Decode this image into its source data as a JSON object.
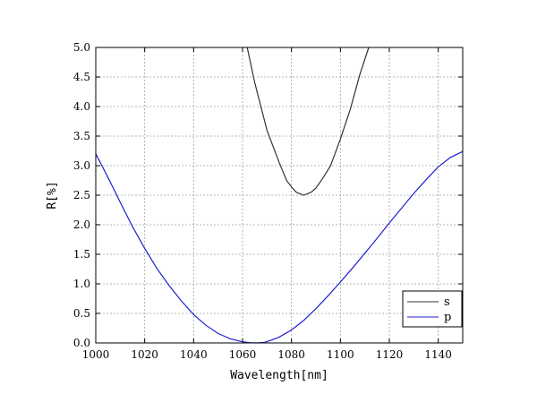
{
  "chart_data": {
    "type": "line",
    "title": "",
    "xlabel": "Wavelength[nm]",
    "ylabel": "R[%]",
    "xlim": [
      1000,
      1150
    ],
    "ylim": [
      0,
      5
    ],
    "x_ticks": [
      1000,
      1020,
      1040,
      1060,
      1080,
      1100,
      1120,
      1140
    ],
    "x_tick_labels": [
      "1000",
      "1020",
      "1040",
      "1060",
      "1080",
      "1100",
      "1120",
      "1140"
    ],
    "y_ticks": [
      0,
      0.5,
      1,
      1.5,
      2,
      2.5,
      3,
      3.5,
      4,
      4.5,
      5
    ],
    "y_tick_labels": [
      "0.0",
      "0.5",
      "1.0",
      "1.5",
      "2.0",
      "2.5",
      "3.0",
      "3.5",
      "4.0",
      "4.5",
      "5.0"
    ],
    "grid": true,
    "legend_position": "bottom-right",
    "series": [
      {
        "name": "s",
        "color": "#333333",
        "x": [
          1061.9,
          1065,
          1070,
          1075,
          1078,
          1080,
          1082,
          1085,
          1088,
          1090,
          1093,
          1096,
          1100,
          1104,
          1108,
          1111.6
        ],
        "y": [
          5.0,
          4.4,
          3.6,
          3.05,
          2.75,
          2.64,
          2.55,
          2.5,
          2.55,
          2.62,
          2.8,
          3.0,
          3.45,
          3.95,
          4.55,
          5.0
        ]
      },
      {
        "name": "p",
        "color": "#1f1fd0",
        "x": [
          1000,
          1005,
          1010,
          1015,
          1020,
          1025,
          1030,
          1035,
          1040,
          1045,
          1050,
          1055,
          1060,
          1063,
          1066,
          1069,
          1072,
          1075,
          1080,
          1085,
          1090,
          1095,
          1100,
          1105,
          1110,
          1115,
          1120,
          1125,
          1130,
          1135,
          1140,
          1145,
          1150
        ],
        "y": [
          3.2,
          2.8,
          2.38,
          1.97,
          1.6,
          1.26,
          0.97,
          0.71,
          0.48,
          0.3,
          0.16,
          0.07,
          0.02,
          0.005,
          0.0,
          0.01,
          0.05,
          0.1,
          0.22,
          0.38,
          0.58,
          0.8,
          1.03,
          1.27,
          1.52,
          1.77,
          2.03,
          2.28,
          2.53,
          2.76,
          2.98,
          3.14,
          3.24
        ]
      }
    ]
  }
}
